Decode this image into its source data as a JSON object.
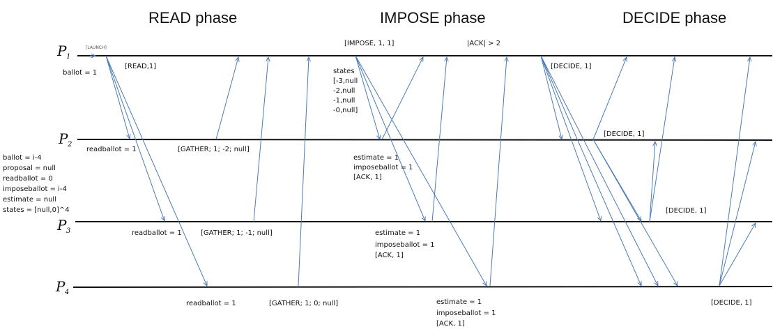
{
  "phases": {
    "read": "READ phase",
    "impose": "IMPOSE phase",
    "decide": "DECIDE phase"
  },
  "processes": [
    {
      "letter": "P",
      "sub": "1"
    },
    {
      "letter": "P",
      "sub": "2"
    },
    {
      "letter": "P",
      "sub": "3"
    },
    {
      "letter": "P",
      "sub": "4"
    }
  ],
  "p1": {
    "launch": "[LAUNCH]",
    "ballot": "ballot = 1",
    "read_msg": "[READ,1]",
    "impose_msg": "[IMPOSE, 1, 1]",
    "ack_count": "|ACK| > 2",
    "decide_msg": "[DECIDE, 1]",
    "states": [
      "states",
      "[-3,null",
      "-2,null",
      "-1,null",
      "-0,null]"
    ]
  },
  "p2": {
    "readballot": "readballot = 1",
    "gather": "[GATHER; 1; -2; null]",
    "estimate": "estimate = 1",
    "imposeballot": "imposeballot = 1",
    "ack": "[ACK, 1]",
    "decide_msg": "[DECIDE, 1]"
  },
  "p3": {
    "readballot": "readballot = 1",
    "gather": "[GATHER; 1; -1; null]",
    "estimate": "estimate = 1",
    "imposeballot": "imposeballot = 1",
    "ack": "[ACK, 1]",
    "decide_msg": "[DECIDE, 1]"
  },
  "p4": {
    "readballot": "readballot = 1",
    "gather": "[GATHER; 1; 0; null]",
    "estimate": "estimate = 1",
    "imposeballot": "imposeballot = 1",
    "ack": "[ACK, 1]",
    "decide_msg": "[DECIDE, 1]"
  },
  "initial_state": [
    "ballot = i-4",
    "proposal = null",
    "readballot = 0",
    "imposeballot = i-4",
    "estimate = null",
    "states = [null,0]^4"
  ],
  "colors": {
    "timeline": "#111111",
    "message": "#4a7ab5"
  }
}
